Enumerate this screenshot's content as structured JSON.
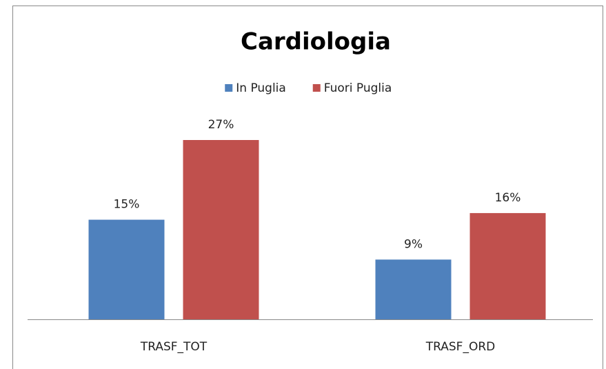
{
  "chart_data": {
    "type": "bar",
    "title": "Cardiologia",
    "categories": [
      "TRASF_TOT",
      "TRASF_ORD"
    ],
    "series": [
      {
        "name": "In Puglia",
        "color": "#4f81bd",
        "values": [
          15,
          9
        ],
        "value_labels": [
          "15%",
          "9%"
        ]
      },
      {
        "name": "Fuori Puglia",
        "color": "#c0504d",
        "values": [
          27,
          16
        ],
        "value_labels": [
          "27%",
          "16%"
        ]
      }
    ],
    "legend": "top"
  }
}
